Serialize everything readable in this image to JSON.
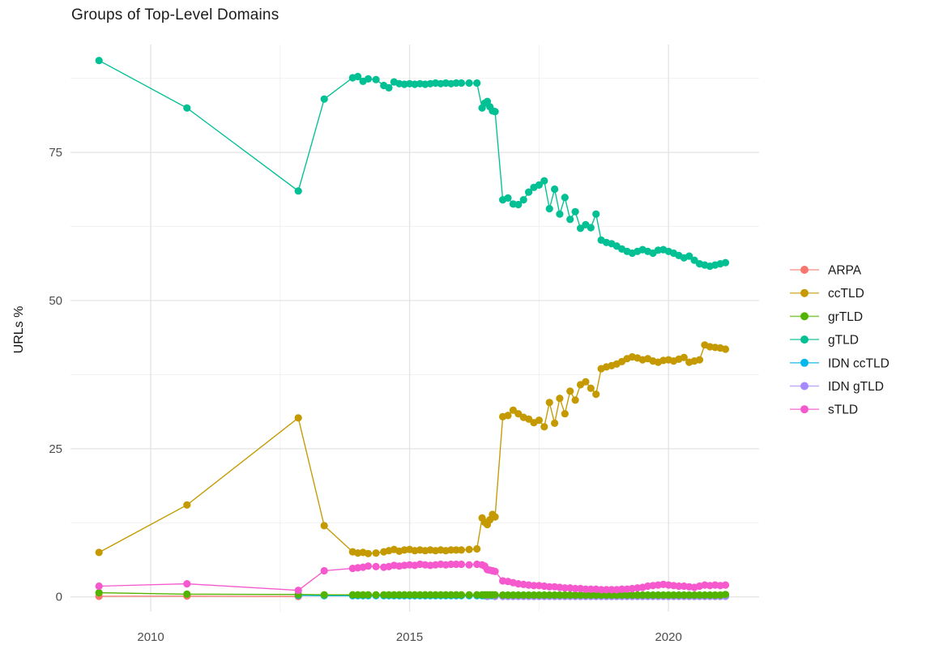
{
  "chart_data": {
    "type": "line",
    "title": "Groups of Top-Level Domains",
    "xlabel": "",
    "ylabel": "URLs %",
    "grid": true,
    "legend_position": "right",
    "xlim": [
      2008.45,
      2021.75
    ],
    "ylim": [
      -2.5,
      93.2
    ],
    "x_ticks": [
      2010,
      2015,
      2020
    ],
    "x_minor": [
      2012.5,
      2017.5
    ],
    "y_ticks": [
      0,
      25,
      50,
      75
    ],
    "y_minor": [
      12.5,
      37.5,
      62.5,
      87.5
    ],
    "series": [
      {
        "name": "ARPA",
        "color": "#F8766D",
        "x": [
          2009.0,
          2010.7,
          2012.85
        ],
        "y": [
          0.1,
          0.12,
          0.06
        ]
      },
      {
        "name": "ccTLD",
        "color": "#C49A00",
        "x": [
          2009.0,
          2010.7,
          2012.85,
          2013.35,
          2013.9,
          2014.0,
          2014.1,
          2014.2,
          2014.35,
          2014.5,
          2014.6,
          2014.7,
          2014.8,
          2014.9,
          2015.0,
          2015.1,
          2015.2,
          2015.3,
          2015.4,
          2015.5,
          2015.6,
          2015.7,
          2015.8,
          2015.9,
          2016.0,
          2016.15,
          2016.3,
          2016.4,
          2016.45,
          2016.5,
          2016.55,
          2016.6,
          2016.65,
          2016.8,
          2016.9,
          2017.0,
          2017.1,
          2017.2,
          2017.3,
          2017.4,
          2017.5,
          2017.6,
          2017.7,
          2017.8,
          2017.9,
          2018.0,
          2018.1,
          2018.2,
          2018.3,
          2018.4,
          2018.5,
          2018.6,
          2018.7,
          2018.8,
          2018.9,
          2019.0,
          2019.1,
          2019.2,
          2019.3,
          2019.4,
          2019.5,
          2019.6,
          2019.7,
          2019.8,
          2019.9,
          2020.0,
          2020.1,
          2020.2,
          2020.3,
          2020.4,
          2020.5,
          2020.6,
          2020.7,
          2020.8,
          2020.9,
          2021.0,
          2021.1
        ],
        "y": [
          7.5,
          15.5,
          30.2,
          12.0,
          7.6,
          7.4,
          7.5,
          7.3,
          7.4,
          7.6,
          7.8,
          8.0,
          7.7,
          7.9,
          8.0,
          7.8,
          7.9,
          7.8,
          7.9,
          7.8,
          7.9,
          7.8,
          7.9,
          7.9,
          7.9,
          8.0,
          8.1,
          13.3,
          12.6,
          12.2,
          13.0,
          13.9,
          13.5,
          30.4,
          30.6,
          31.5,
          30.9,
          30.3,
          30.0,
          29.4,
          29.8,
          28.7,
          32.8,
          29.3,
          33.5,
          30.9,
          34.7,
          33.2,
          35.8,
          36.3,
          35.2,
          34.2,
          38.5,
          38.8,
          39.0,
          39.3,
          39.7,
          40.2,
          40.5,
          40.3,
          40.0,
          40.2,
          39.8,
          39.6,
          39.9,
          40.0,
          39.8,
          40.1,
          40.4,
          39.6,
          39.8,
          40.0,
          42.5,
          42.2,
          42.1,
          42.0,
          41.8
        ]
      },
      {
        "name": "grTLD",
        "color": "#53B400",
        "x": [
          2009.0,
          2010.7,
          2012.85,
          2013.35,
          2013.9,
          2014.0,
          2014.1,
          2014.2,
          2014.35,
          2014.5,
          2014.6,
          2014.7,
          2014.8,
          2014.9,
          2015.0,
          2015.1,
          2015.2,
          2015.3,
          2015.4,
          2015.5,
          2015.6,
          2015.7,
          2015.8,
          2015.9,
          2016.0,
          2016.15,
          2016.3,
          2016.4,
          2016.45,
          2016.5,
          2016.55,
          2016.6,
          2016.65,
          2016.8,
          2016.9,
          2017.0,
          2017.1,
          2017.2,
          2017.3,
          2017.4,
          2017.5,
          2017.6,
          2017.7,
          2017.8,
          2017.9,
          2018.0,
          2018.1,
          2018.2,
          2018.3,
          2018.4,
          2018.5,
          2018.6,
          2018.7,
          2018.8,
          2018.9,
          2019.0,
          2019.1,
          2019.2,
          2019.3,
          2019.4,
          2019.5,
          2019.6,
          2019.7,
          2019.8,
          2019.9,
          2020.0,
          2020.1,
          2020.2,
          2020.3,
          2020.4,
          2020.5,
          2020.6,
          2020.7,
          2020.8,
          2020.9,
          2021.0,
          2021.1
        ],
        "y": [
          0.7,
          0.45,
          0.4,
          0.35,
          0.35,
          0.35,
          0.35,
          0.35,
          0.35,
          0.35,
          0.35,
          0.35,
          0.35,
          0.35,
          0.35,
          0.35,
          0.35,
          0.35,
          0.35,
          0.35,
          0.35,
          0.35,
          0.35,
          0.35,
          0.35,
          0.35,
          0.35,
          0.35,
          0.35,
          0.35,
          0.35,
          0.35,
          0.35,
          0.3,
          0.3,
          0.3,
          0.3,
          0.3,
          0.3,
          0.3,
          0.3,
          0.3,
          0.3,
          0.3,
          0.3,
          0.3,
          0.3,
          0.3,
          0.3,
          0.3,
          0.3,
          0.3,
          0.3,
          0.3,
          0.3,
          0.3,
          0.3,
          0.3,
          0.3,
          0.3,
          0.3,
          0.3,
          0.3,
          0.3,
          0.3,
          0.3,
          0.3,
          0.3,
          0.3,
          0.3,
          0.3,
          0.3,
          0.3,
          0.3,
          0.3,
          0.3,
          0.4
        ]
      },
      {
        "name": "gTLD",
        "color": "#00C094",
        "x": [
          2009.0,
          2010.7,
          2012.85,
          2013.35,
          2013.9,
          2014.0,
          2014.1,
          2014.2,
          2014.35,
          2014.5,
          2014.6,
          2014.7,
          2014.8,
          2014.9,
          2015.0,
          2015.1,
          2015.2,
          2015.3,
          2015.4,
          2015.5,
          2015.6,
          2015.7,
          2015.8,
          2015.9,
          2016.0,
          2016.15,
          2016.3,
          2016.4,
          2016.45,
          2016.5,
          2016.55,
          2016.6,
          2016.65,
          2016.8,
          2016.9,
          2017.0,
          2017.1,
          2017.2,
          2017.3,
          2017.4,
          2017.5,
          2017.6,
          2017.7,
          2017.8,
          2017.9,
          2018.0,
          2018.1,
          2018.2,
          2018.3,
          2018.4,
          2018.5,
          2018.6,
          2018.7,
          2018.8,
          2018.9,
          2019.0,
          2019.1,
          2019.2,
          2019.3,
          2019.4,
          2019.5,
          2019.6,
          2019.7,
          2019.8,
          2019.9,
          2020.0,
          2020.1,
          2020.2,
          2020.3,
          2020.4,
          2020.5,
          2020.6,
          2020.7,
          2020.8,
          2020.9,
          2021.0,
          2021.1
        ],
        "y": [
          90.5,
          82.5,
          68.5,
          84.0,
          87.6,
          87.8,
          87.0,
          87.4,
          87.3,
          86.3,
          85.9,
          86.9,
          86.6,
          86.5,
          86.6,
          86.5,
          86.6,
          86.5,
          86.6,
          86.7,
          86.6,
          86.7,
          86.6,
          86.7,
          86.7,
          86.7,
          86.7,
          82.5,
          83.3,
          83.6,
          82.7,
          82.0,
          81.9,
          67.0,
          67.3,
          66.3,
          66.2,
          67.0,
          68.3,
          69.1,
          69.5,
          70.2,
          65.5,
          68.8,
          64.6,
          67.4,
          63.7,
          65.0,
          62.2,
          62.8,
          62.3,
          64.6,
          60.2,
          59.8,
          59.6,
          59.2,
          58.7,
          58.3,
          58.0,
          58.3,
          58.6,
          58.3,
          58.0,
          58.5,
          58.6,
          58.3,
          58.0,
          57.6,
          57.2,
          57.5,
          56.8,
          56.2,
          56.0,
          55.8,
          56.0,
          56.2,
          56.4
        ]
      },
      {
        "name": "IDN ccTLD",
        "color": "#00B6EB",
        "x": [
          2012.85,
          2013.35,
          2013.9,
          2014.0,
          2014.1,
          2014.2,
          2014.35,
          2014.5,
          2014.6,
          2014.7,
          2014.8,
          2014.9,
          2015.0,
          2015.1,
          2015.2,
          2015.3,
          2015.4,
          2015.5,
          2015.6,
          2015.7,
          2015.8,
          2015.9,
          2016.0,
          2016.15,
          2016.3,
          2016.4,
          2016.45,
          2016.5,
          2016.55,
          2016.6,
          2016.65,
          2016.8,
          2016.9,
          2017.0,
          2017.1,
          2017.2,
          2017.3,
          2017.4,
          2017.5,
          2017.6,
          2017.7,
          2017.8,
          2017.9,
          2018.0,
          2018.1,
          2018.2,
          2018.3,
          2018.4,
          2018.5,
          2018.6,
          2018.7,
          2018.8,
          2018.9,
          2019.0,
          2019.1,
          2019.2,
          2019.3,
          2019.4,
          2019.5,
          2019.6,
          2019.7,
          2019.8,
          2019.9,
          2020.0,
          2020.1,
          2020.2,
          2020.3,
          2020.4,
          2020.5,
          2020.6,
          2020.7,
          2020.8,
          2020.9,
          2021.0,
          2021.1
        ],
        "y": [
          0.25,
          0.2,
          0.2,
          0.2,
          0.2,
          0.2,
          0.2,
          0.2,
          0.2,
          0.2,
          0.2,
          0.2,
          0.2,
          0.2,
          0.2,
          0.2,
          0.2,
          0.2,
          0.2,
          0.2,
          0.2,
          0.2,
          0.2,
          0.2,
          0.2,
          0.2,
          0.2,
          0.2,
          0.2,
          0.2,
          0.2,
          0.15,
          0.15,
          0.15,
          0.15,
          0.15,
          0.15,
          0.15,
          0.15,
          0.15,
          0.15,
          0.15,
          0.15,
          0.15,
          0.15,
          0.15,
          0.15,
          0.15,
          0.15,
          0.15,
          0.15,
          0.15,
          0.15,
          0.15,
          0.15,
          0.15,
          0.15,
          0.15,
          0.15,
          0.15,
          0.15,
          0.15,
          0.15,
          0.15,
          0.15,
          0.15,
          0.15,
          0.15,
          0.15,
          0.15,
          0.15,
          0.15,
          0.15,
          0.15,
          0.15
        ]
      },
      {
        "name": "IDN gTLD",
        "color": "#A58AFF",
        "x": [
          2016.5,
          2016.65,
          2016.8,
          2016.9,
          2017.0,
          2017.1,
          2017.2,
          2017.3,
          2017.4,
          2017.5,
          2017.6,
          2017.7,
          2017.8,
          2017.9,
          2018.0,
          2018.1,
          2018.2,
          2018.3,
          2018.4,
          2018.5,
          2018.6,
          2018.7,
          2018.8,
          2018.9,
          2019.0,
          2019.1,
          2019.2,
          2019.3,
          2019.4,
          2019.5,
          2019.6,
          2019.7,
          2019.8,
          2019.9,
          2020.0,
          2020.1,
          2020.2,
          2020.3,
          2020.4,
          2020.5,
          2020.6,
          2020.7,
          2020.8,
          2020.9,
          2021.0,
          2021.1
        ],
        "y": [
          0.08,
          0.08,
          0.08,
          0.08,
          0.08,
          0.08,
          0.08,
          0.08,
          0.08,
          0.08,
          0.08,
          0.08,
          0.08,
          0.08,
          0.08,
          0.08,
          0.08,
          0.08,
          0.08,
          0.08,
          0.08,
          0.08,
          0.08,
          0.08,
          0.08,
          0.08,
          0.08,
          0.08,
          0.08,
          0.08,
          0.08,
          0.08,
          0.08,
          0.08,
          0.08,
          0.08,
          0.08,
          0.08,
          0.08,
          0.08,
          0.08,
          0.08,
          0.08,
          0.08,
          0.08,
          0.1
        ]
      },
      {
        "name": "sTLD",
        "color": "#F559CD",
        "x": [
          2009.0,
          2010.7,
          2012.85,
          2013.35,
          2013.9,
          2014.0,
          2014.1,
          2014.2,
          2014.35,
          2014.5,
          2014.6,
          2014.7,
          2014.8,
          2014.9,
          2015.0,
          2015.1,
          2015.2,
          2015.3,
          2015.4,
          2015.5,
          2015.6,
          2015.7,
          2015.8,
          2015.9,
          2016.0,
          2016.15,
          2016.3,
          2016.4,
          2016.45,
          2016.5,
          2016.55,
          2016.6,
          2016.65,
          2016.8,
          2016.9,
          2017.0,
          2017.1,
          2017.2,
          2017.3,
          2017.4,
          2017.5,
          2017.6,
          2017.7,
          2017.8,
          2017.9,
          2018.0,
          2018.1,
          2018.2,
          2018.3,
          2018.4,
          2018.5,
          2018.6,
          2018.7,
          2018.8,
          2018.9,
          2019.0,
          2019.1,
          2019.2,
          2019.3,
          2019.4,
          2019.5,
          2019.6,
          2019.7,
          2019.8,
          2019.9,
          2020.0,
          2020.1,
          2020.2,
          2020.3,
          2020.4,
          2020.5,
          2020.6,
          2020.7,
          2020.8,
          2020.9,
          2021.0,
          2021.1
        ],
        "y": [
          1.8,
          2.2,
          1.1,
          4.4,
          4.8,
          4.9,
          5.0,
          5.2,
          5.1,
          5.0,
          5.1,
          5.3,
          5.2,
          5.3,
          5.4,
          5.3,
          5.5,
          5.4,
          5.3,
          5.4,
          5.5,
          5.4,
          5.5,
          5.5,
          5.5,
          5.4,
          5.5,
          5.4,
          5.2,
          4.6,
          4.5,
          4.4,
          4.3,
          2.7,
          2.6,
          2.4,
          2.2,
          2.1,
          2.0,
          1.9,
          1.9,
          1.8,
          1.7,
          1.7,
          1.6,
          1.5,
          1.5,
          1.4,
          1.4,
          1.3,
          1.3,
          1.3,
          1.2,
          1.2,
          1.2,
          1.2,
          1.3,
          1.3,
          1.4,
          1.5,
          1.6,
          1.8,
          1.9,
          2.0,
          2.1,
          2.0,
          1.9,
          1.8,
          1.8,
          1.7,
          1.6,
          1.8,
          2.0,
          1.9,
          2.0,
          1.9,
          2.0
        ]
      }
    ]
  }
}
